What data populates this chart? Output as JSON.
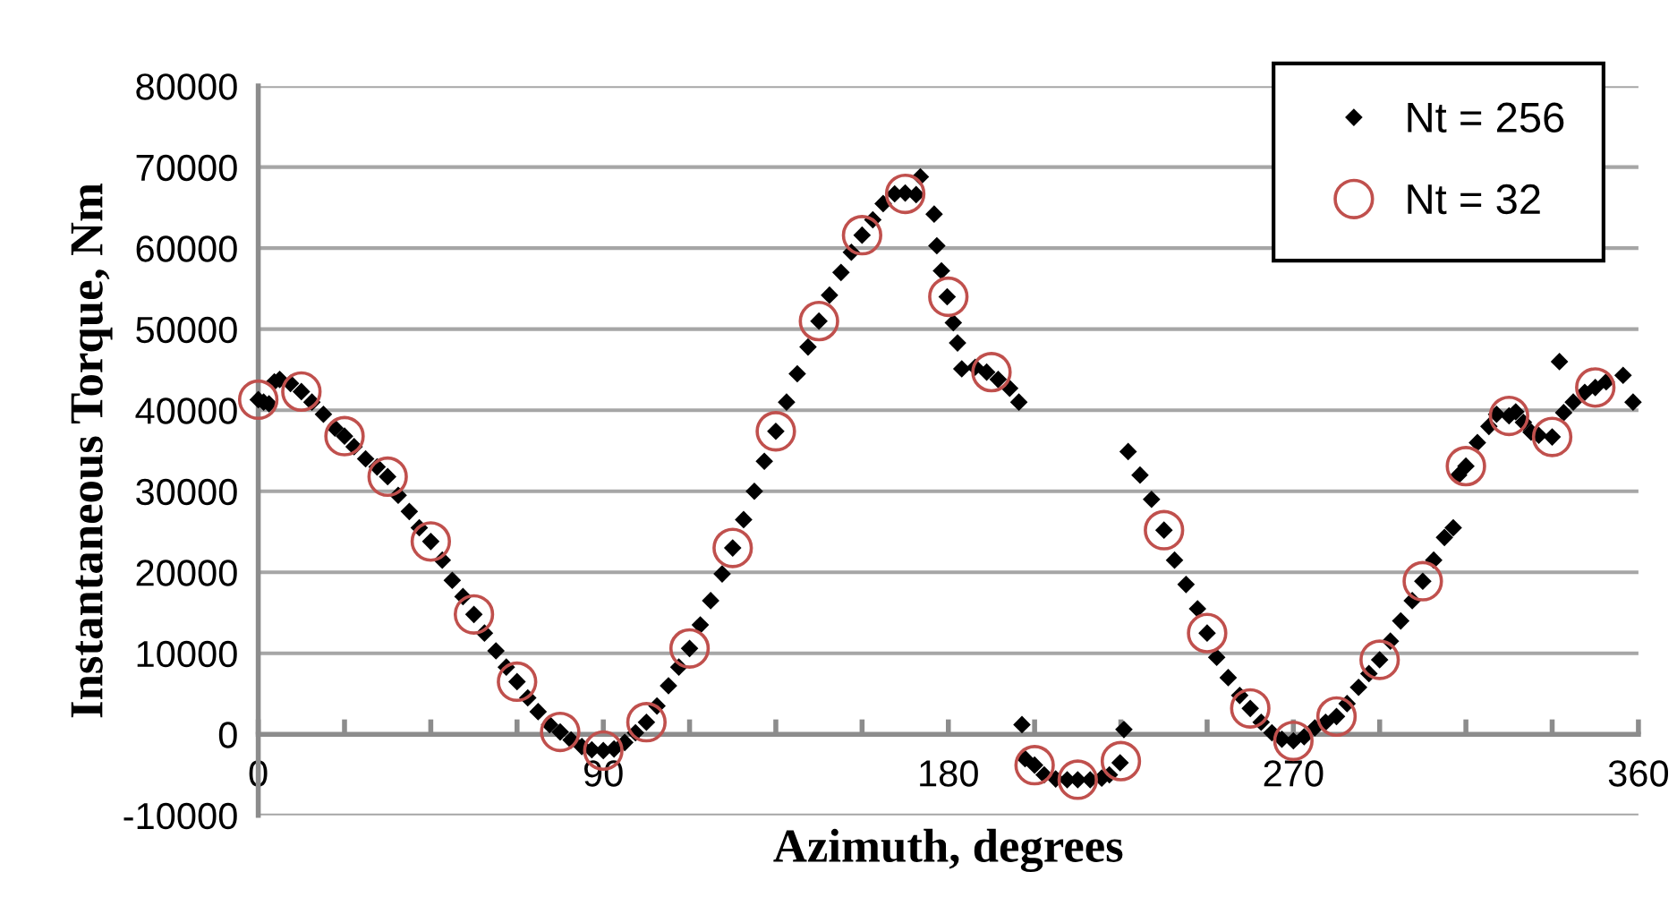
{
  "chart_data": {
    "type": "scatter",
    "xlabel": "Azimuth, degrees",
    "ylabel": "Instantaneous Torque, Nm",
    "xlim": [
      0,
      360
    ],
    "ylim": [
      -10000,
      80000
    ],
    "xticks": [
      0,
      {
        "value": 22.5,
        "label": null
      },
      {
        "value": 45,
        "label": null
      },
      {
        "value": 67.5,
        "label": null
      },
      90,
      {
        "value": 112.5,
        "label": null
      },
      {
        "value": 135,
        "label": null
      },
      {
        "value": 157.5,
        "label": null
      },
      180,
      {
        "value": 202.5,
        "label": null
      },
      {
        "value": 225,
        "label": null
      },
      {
        "value": 247.5,
        "label": null
      },
      270,
      {
        "value": 292.5,
        "label": null
      },
      {
        "value": 315,
        "label": null
      },
      {
        "value": 337.5,
        "label": null
      },
      360
    ],
    "yticks": [
      -10000,
      0,
      10000,
      20000,
      30000,
      40000,
      50000,
      60000,
      70000,
      80000
    ],
    "grid": "y",
    "legend": "top right",
    "series": [
      {
        "name": "Nt = 256",
        "color": "#000000",
        "marker": "diamond",
        "x": [
          0,
          1.4,
          2.8,
          4.2,
          5.6,
          8.4,
          11.25,
          14,
          17,
          20,
          22.5,
          25,
          28,
          31,
          33.75,
          36.5,
          39.4,
          42,
          45,
          48,
          50.6,
          53.4,
          56.25,
          59,
          62,
          64.7,
          67.5,
          70.3,
          73,
          76,
          78.75,
          81.6,
          84.4,
          87,
          90,
          92.8,
          95.6,
          98.4,
          101.25,
          104,
          107,
          109.7,
          112.5,
          115.3,
          118,
          121,
          123.75,
          126.6,
          129.4,
          132,
          135,
          137.8,
          140.6,
          143.4,
          146.25,
          149,
          152,
          154.7,
          157.5,
          160.3,
          163,
          166,
          168.75,
          171.6,
          172.7,
          176.3,
          177,
          178.2,
          179.7,
          181.3,
          182.4,
          183.5,
          187,
          190,
          193,
          196,
          198.4,
          199.2,
          200,
          202.5,
          205,
          208,
          211,
          213.75,
          217,
          220,
          222,
          224.8,
          225.8,
          226.9,
          230,
          233,
          236.25,
          239,
          242,
          245,
          247.5,
          250,
          253,
          256,
          258.75,
          261.6,
          264.4,
          267,
          270,
          272.8,
          275.6,
          278.4,
          281.25,
          284,
          287,
          289.7,
          292.5,
          295.3,
          298,
          301,
          303.75,
          306.6,
          309.4,
          311.7,
          313.1,
          315,
          318,
          321,
          323,
          326.25,
          328,
          330,
          332,
          334,
          337.5,
          339.4,
          340.5,
          343,
          346,
          348.75,
          351.6,
          356,
          358.6
        ],
        "values": [
          41300,
          41000,
          40800,
          43500,
          43800,
          43300,
          42300,
          41000,
          39500,
          37800,
          36800,
          35500,
          34000,
          33000,
          31800,
          29500,
          27500,
          25500,
          23800,
          21500,
          19000,
          17000,
          14800,
          12500,
          10300,
          8300,
          6500,
          4500,
          2800,
          1200,
          300,
          -700,
          -1500,
          -1900,
          -2000,
          -1800,
          -1000,
          200,
          1500,
          3500,
          6000,
          8300,
          10600,
          13500,
          16500,
          19800,
          23000,
          26500,
          30000,
          33700,
          37400,
          41000,
          44500,
          47800,
          51000,
          54200,
          57000,
          59500,
          61600,
          63500,
          65500,
          66700,
          66800,
          66600,
          68800,
          64200,
          60300,
          57200,
          54000,
          50800,
          48300,
          45100,
          45300,
          44700,
          43800,
          42700,
          41000,
          1200,
          -3000,
          -3800,
          -5000,
          -5500,
          -5600,
          -5600,
          -5600,
          -5400,
          -5000,
          -3500,
          600,
          34900,
          32000,
          29000,
          25200,
          21500,
          18500,
          15500,
          12500,
          9500,
          7000,
          4800,
          3200,
          1500,
          200,
          -600,
          -800,
          -300,
          800,
          1500,
          2200,
          3800,
          5800,
          7500,
          9200,
          11500,
          14000,
          16500,
          18900,
          21500,
          24300,
          25500,
          32000,
          33100,
          36000,
          38000,
          39500,
          39300,
          39800,
          38500,
          37300,
          36900,
          36700,
          46000,
          39700,
          41000,
          42200,
          42800,
          43500,
          44300,
          41000
        ]
      },
      {
        "name": "Nt = 32",
        "color": "#c0504d",
        "marker": "circle",
        "x": [
          0,
          11.25,
          22.5,
          33.75,
          45,
          56.25,
          67.5,
          78.75,
          90,
          101.25,
          112.5,
          123.75,
          135,
          146.25,
          157.5,
          168.75,
          180,
          191.25,
          202.5,
          213.75,
          225,
          236.25,
          247.5,
          258.75,
          270,
          281.25,
          292.5,
          303.75,
          315,
          326.25,
          337.5,
          348.75
        ],
        "values": [
          41300,
          42300,
          36800,
          31800,
          23800,
          14800,
          6500,
          300,
          -2000,
          1500,
          10600,
          23000,
          37400,
          51000,
          61600,
          66700,
          54000,
          44700,
          -3800,
          -5600,
          -3300,
          25200,
          12500,
          3200,
          -800,
          2200,
          9200,
          18900,
          33100,
          39300,
          36700,
          42800
        ]
      }
    ]
  }
}
